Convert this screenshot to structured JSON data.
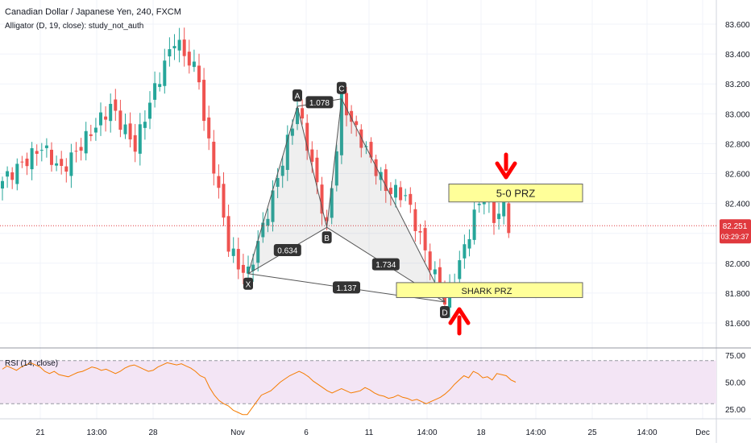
{
  "header": {
    "title": "Canadian Dollar / Japanese Yen, 240, FXCM",
    "indicator": "Alligator (D, 19, close): study_not_auth",
    "rsi_label": "RSI (14, close)"
  },
  "price_badge": {
    "price": "82.251",
    "countdown": "03:29:37"
  },
  "colors": {
    "up": "#26a69a",
    "down": "#ef5350",
    "rsi": "#f57c00",
    "rsi_band": "#f3e5f5",
    "price_line": "#e0393e",
    "arrow": "#ff0000",
    "zone_fill": "#ffff99"
  },
  "chart_data": [
    {
      "type": "candlestick",
      "title": "Canadian Dollar / Japanese Yen, 240, FXCM",
      "ylim": [
        81.5,
        83.75
      ],
      "y_ticks": [
        "83.600",
        "83.400",
        "83.200",
        "83.000",
        "82.800",
        "82.600",
        "82.400",
        "82.200",
        "82.000",
        "81.800",
        "81.600"
      ],
      "x_ticks": [
        "21",
        "13:00",
        "28",
        "Nov",
        "6",
        "11",
        "14:00",
        "18",
        "14:00",
        "25",
        "14:00",
        "Dec"
      ],
      "last_price": 82.251,
      "harmonic_pattern": {
        "points": [
          {
            "label": "X",
            "price": 81.93
          },
          {
            "label": "A",
            "price": 83.05
          },
          {
            "label": "B",
            "price": 82.24
          },
          {
            "label": "C",
            "price": 83.1
          },
          {
            "label": "D",
            "price": 81.74
          }
        ],
        "ratios": [
          "0.634",
          "1.078",
          "1.734",
          "1.137"
        ]
      },
      "zones": [
        {
          "label": "5-0 PRZ",
          "from": 82.41,
          "to": 82.53
        },
        {
          "label": "SHARK PRZ",
          "from": 81.77,
          "to": 81.87
        }
      ]
    },
    {
      "type": "line",
      "title": "RSI (14, close)",
      "ylim": [
        20,
        78
      ],
      "y_ticks": [
        "75.00",
        "50.00",
        "25.00"
      ],
      "band": [
        30,
        70
      ],
      "values": [
        62,
        65,
        63,
        61,
        64,
        66,
        68,
        66,
        64,
        60,
        58,
        60,
        57,
        56,
        55,
        57,
        59,
        60,
        62,
        64,
        63,
        61,
        62,
        60,
        58,
        60,
        63,
        65,
        66,
        64,
        62,
        60,
        61,
        64,
        66,
        68,
        67,
        66,
        67,
        65,
        63,
        60,
        56,
        54,
        45,
        38,
        33,
        30,
        28,
        24,
        22,
        20,
        20,
        26,
        32,
        38,
        40,
        42,
        46,
        50,
        53,
        56,
        58,
        60,
        58,
        55,
        51,
        48,
        45,
        42,
        40,
        42,
        44,
        42,
        40,
        41,
        42,
        45,
        43,
        40,
        38,
        37,
        35,
        36,
        38,
        36,
        35,
        33,
        34,
        32,
        30,
        32,
        34,
        36,
        39,
        43,
        48,
        52,
        56,
        54,
        60,
        58,
        54,
        55,
        52,
        58,
        57,
        56,
        52,
        50
      ]
    }
  ]
}
